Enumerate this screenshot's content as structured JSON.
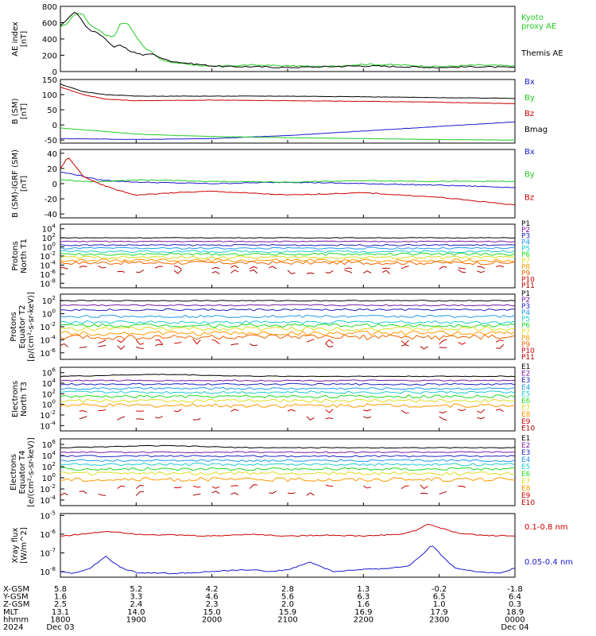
{
  "colors": {
    "black": "#000000",
    "red": "#cc0000",
    "green": "#22cc22",
    "blue": "#1a1acc",
    "purple": "#7a1aa0",
    "navy": "#2222bb",
    "sky": "#2299ee",
    "cyan": "#22cccc",
    "lime": "#22dd22",
    "yellow": "#dddd22",
    "orange": "#ff9900",
    "darkorange": "#ee6600",
    "darkred": "#aa0000"
  },
  "chart_data": [
    {
      "type": "line",
      "panel": "ae",
      "ylabel": "AE index [nT]",
      "yticks": [
        "800",
        "600",
        "400",
        "200",
        "0"
      ],
      "ylim": [
        0,
        800
      ],
      "series": [
        {
          "name": "Kyoto proxy AE",
          "color": "green",
          "x_hr": [
            0,
            0.1,
            0.2,
            0.3,
            0.4,
            0.5,
            0.6,
            0.7,
            0.8,
            0.9,
            1.0,
            1.1,
            1.2,
            1.3,
            1.4,
            1.6,
            1.8,
            2.0,
            2.2,
            2.5,
            3.0,
            3.5,
            4.0,
            4.5,
            5.0,
            5.5,
            6.0
          ],
          "values": [
            540,
            600,
            720,
            700,
            560,
            520,
            450,
            420,
            600,
            580,
            430,
            300,
            250,
            160,
            120,
            100,
            80,
            60,
            70,
            80,
            70,
            60,
            90,
            80,
            60,
            80,
            70
          ]
        },
        {
          "name": "Themis AE",
          "color": "black",
          "x_hr": [
            0,
            0.1,
            0.2,
            0.3,
            0.4,
            0.5,
            0.6,
            0.7,
            0.8,
            0.9,
            1.0,
            1.1,
            1.2,
            1.3,
            1.4,
            1.6,
            1.8,
            2.0,
            2.2,
            2.5,
            3.0,
            3.5,
            4.0,
            4.5,
            5.0,
            5.5,
            6.0
          ],
          "values": [
            560,
            650,
            740,
            600,
            500,
            470,
            400,
            300,
            320,
            260,
            230,
            200,
            220,
            180,
            140,
            110,
            90,
            70,
            60,
            60,
            50,
            60,
            70,
            60,
            50,
            60,
            50
          ]
        }
      ]
    },
    {
      "type": "line",
      "panel": "b",
      "ylabel": "B (SM) [nT]",
      "yticks": [
        "150",
        "100",
        "50",
        "0",
        "-50"
      ],
      "ylim": [
        -60,
        150
      ],
      "series": [
        {
          "name": "Bx",
          "color": "blue",
          "x_hr": [
            0,
            1,
            2,
            3,
            4,
            5,
            6
          ],
          "values": [
            -45,
            -48,
            -45,
            -35,
            -20,
            -5,
            10
          ]
        },
        {
          "name": "By",
          "color": "green",
          "x_hr": [
            0,
            0.5,
            1,
            1.5,
            2,
            3,
            4,
            5,
            6
          ],
          "values": [
            -10,
            -20,
            -30,
            -35,
            -38,
            -42,
            -45,
            -48,
            -50
          ]
        },
        {
          "name": "Bz",
          "color": "red",
          "x_hr": [
            0,
            0.3,
            0.6,
            1,
            2,
            3,
            4,
            5,
            6
          ],
          "values": [
            125,
            100,
            85,
            80,
            82,
            80,
            78,
            75,
            70
          ]
        },
        {
          "name": "Bmag",
          "color": "black",
          "x_hr": [
            0,
            0.3,
            0.6,
            1,
            2,
            3,
            4,
            5,
            6
          ],
          "values": [
            135,
            110,
            100,
            95,
            95,
            95,
            93,
            90,
            88
          ]
        }
      ]
    },
    {
      "type": "line",
      "panel": "db",
      "ylabel": "B (SM)-IGRF (SM) [nT]",
      "yticks": [
        "40",
        "20",
        "0",
        "-20",
        "-40"
      ],
      "ylim": [
        -45,
        45
      ],
      "series": [
        {
          "name": "Bx",
          "color": "blue",
          "x_hr": [
            0,
            0.2,
            0.5,
            1,
            2,
            3,
            4,
            5,
            6
          ],
          "values": [
            15,
            12,
            5,
            2,
            0,
            2,
            0,
            -2,
            -5
          ]
        },
        {
          "name": "By",
          "color": "green",
          "x_hr": [
            0,
            0.5,
            1,
            2,
            3,
            4,
            5,
            6
          ],
          "values": [
            5,
            2,
            5,
            3,
            2,
            4,
            3,
            3
          ]
        },
        {
          "name": "Bz",
          "color": "red",
          "x_hr": [
            0,
            0.1,
            0.3,
            0.5,
            0.8,
            1,
            1.5,
            2,
            3,
            4,
            5,
            6
          ],
          "values": [
            20,
            35,
            10,
            0,
            -10,
            -15,
            -12,
            -10,
            -15,
            -12,
            -18,
            -28
          ]
        }
      ]
    },
    {
      "type": "line",
      "panel": "p1",
      "ylabel": "Protons North T1",
      "yticks_exp": [
        4,
        2,
        0,
        -2,
        -4,
        -6,
        -8
      ],
      "log_range": [
        -9,
        5
      ],
      "series": [
        {
          "name": "P1",
          "color": "black",
          "level": 2.0
        },
        {
          "name": "P2",
          "color": "purple",
          "level": 1.2
        },
        {
          "name": "P3",
          "color": "navy",
          "level": 0.4
        },
        {
          "name": "P4",
          "color": "sky",
          "level": -0.3
        },
        {
          "name": "P5",
          "color": "cyan",
          "level": -1.0
        },
        {
          "name": "P6",
          "color": "lime",
          "level": -1.6
        },
        {
          "name": "P7",
          "color": "yellow",
          "level": -2.3
        },
        {
          "name": "P8",
          "color": "orange",
          "level": -3.0
        },
        {
          "name": "P9",
          "color": "darkorange",
          "level": -3.5
        },
        {
          "name": "P10",
          "color": "red",
          "level": -4.5
        },
        {
          "name": "P11",
          "color": "darkred",
          "level": -5.5
        }
      ]
    },
    {
      "type": "line",
      "panel": "p2",
      "ylabel": "Protons Equator T2 [p/(cm²-s-sr-keV)]",
      "yticks_exp": [
        2,
        0,
        -2,
        -4,
        -6
      ],
      "log_range": [
        -7,
        3
      ],
      "series": [
        {
          "name": "P1",
          "color": "black",
          "level": 2.0
        },
        {
          "name": "P2",
          "color": "purple",
          "level": 1.3
        },
        {
          "name": "P3",
          "color": "navy",
          "level": 0.6
        },
        {
          "name": "P4",
          "color": "sky",
          "level": -0.4
        },
        {
          "name": "P5",
          "color": "cyan",
          "level": -1.3
        },
        {
          "name": "P6",
          "color": "lime",
          "level": -1.8
        },
        {
          "name": "P7",
          "color": "yellow",
          "level": -2.3
        },
        {
          "name": "P8",
          "color": "orange",
          "level": -3.0
        },
        {
          "name": "P9",
          "color": "darkorange",
          "level": -3.6
        },
        {
          "name": "P10",
          "color": "red",
          "level": -4.3
        },
        {
          "name": "P11",
          "color": "darkred",
          "level": -5.0
        }
      ]
    },
    {
      "type": "line",
      "panel": "e1",
      "ylabel": "Electrons North T3",
      "yticks_exp": [
        6,
        4,
        2,
        0,
        -2,
        -4
      ],
      "log_range": [
        -5,
        7
      ],
      "series": [
        {
          "name": "E1",
          "color": "black",
          "level": 5.3
        },
        {
          "name": "E2",
          "color": "purple",
          "level": 4.5
        },
        {
          "name": "E3",
          "color": "navy",
          "level": 3.8
        },
        {
          "name": "E4",
          "color": "sky",
          "level": 3.0
        },
        {
          "name": "E5",
          "color": "cyan",
          "level": 2.3
        },
        {
          "name": "E6",
          "color": "lime",
          "level": 1.5
        },
        {
          "name": "E7",
          "color": "yellow",
          "level": 0.7
        },
        {
          "name": "E8",
          "color": "orange",
          "level": -0.2
        },
        {
          "name": "E9",
          "color": "red",
          "level": -1.3
        },
        {
          "name": "E10",
          "color": "darkred",
          "level": -2.6
        }
      ]
    },
    {
      "type": "line",
      "panel": "e2",
      "ylabel": "Electrons Equator T4 [e/(cm²-s-sr-keV)]",
      "yticks_exp": [
        6,
        4,
        2,
        0,
        -2,
        -4
      ],
      "log_range": [
        -5,
        7
      ],
      "series": [
        {
          "name": "E1",
          "color": "black",
          "level": 5.4
        },
        {
          "name": "E2",
          "color": "purple",
          "level": 4.6
        },
        {
          "name": "E3",
          "color": "navy",
          "level": 3.9
        },
        {
          "name": "E4",
          "color": "sky",
          "level": 3.1
        },
        {
          "name": "E5",
          "color": "cyan",
          "level": 2.4
        },
        {
          "name": "E6",
          "color": "lime",
          "level": 1.6
        },
        {
          "name": "E7",
          "color": "yellow",
          "level": 0.8
        },
        {
          "name": "E8",
          "color": "orange",
          "level": -0.3
        },
        {
          "name": "E9",
          "color": "red",
          "level": -1.6
        },
        {
          "name": "E10",
          "color": "darkred",
          "level": -2.8
        }
      ]
    },
    {
      "type": "line",
      "panel": "xray",
      "ylabel": "Xray flux [W/m^2]",
      "yticks_exp": [
        -5,
        -6,
        -7,
        -8
      ],
      "log_range": [
        -8.3,
        -4.9
      ],
      "series": [
        {
          "name": "0.1-0.8 nm",
          "color": "red",
          "x_hr": [
            0,
            0.3,
            0.6,
            0.8,
            1.0,
            1.5,
            2,
            2.5,
            3,
            3.5,
            4,
            4.5,
            4.7,
            4.85,
            5.0,
            5.2,
            5.5,
            6
          ],
          "values": [
            -6.1,
            -6.0,
            -5.85,
            -5.9,
            -6.0,
            -6.05,
            -6.1,
            -6.0,
            -6.1,
            -6.05,
            -6.1,
            -6.0,
            -5.8,
            -5.45,
            -5.65,
            -5.9,
            -6.05,
            -6.1
          ]
        },
        {
          "name": "0.05-0.4 nm",
          "color": "blue",
          "x_hr": [
            0,
            0.2,
            0.4,
            0.6,
            0.8,
            1.0,
            1.5,
            2.0,
            2.5,
            2.8,
            3.0,
            3.3,
            3.6,
            4.0,
            4.4,
            4.6,
            4.8,
            4.9,
            5.0,
            5.2,
            5.5,
            5.8,
            6.0
          ],
          "values": [
            -8.0,
            -8.1,
            -7.8,
            -7.2,
            -7.8,
            -8.05,
            -8.1,
            -8.0,
            -7.9,
            -8.0,
            -7.9,
            -7.5,
            -8.0,
            -7.9,
            -7.8,
            -7.7,
            -7.0,
            -6.55,
            -7.0,
            -7.8,
            -8.0,
            -8.1,
            -7.8
          ]
        }
      ]
    }
  ],
  "legend": {
    "ae": [
      "Kyoto",
      "proxy AE",
      "Themis AE"
    ]
  },
  "ephemeris": {
    "rows": [
      {
        "label": "X-GSM",
        "values": [
          "5.8",
          "5.2",
          "4.2",
          "2.8",
          "1.3",
          "-0.2",
          "-1.8"
        ]
      },
      {
        "label": "Y-GSM",
        "values": [
          "1.6",
          "3.3",
          "4.6",
          "5.6",
          "6.3",
          "6.5",
          "6.4"
        ]
      },
      {
        "label": "Z-GSM",
        "values": [
          "2.5",
          "2.4",
          "2.3",
          "2.0",
          "1.6",
          "1.0",
          "0.3"
        ]
      },
      {
        "label": "MLT",
        "values": [
          "13.1",
          "14.0",
          "15.0",
          "15.9",
          "16.9",
          "17.9",
          "18.9"
        ]
      },
      {
        "label": "hhmm",
        "values": [
          "1800",
          "1900",
          "2000",
          "2100",
          "2200",
          "2300",
          "0000"
        ]
      },
      {
        "label": "2024",
        "values": [
          "Dec 03",
          "",
          "",
          "",
          "",
          "",
          "Dec 04"
        ]
      }
    ]
  }
}
